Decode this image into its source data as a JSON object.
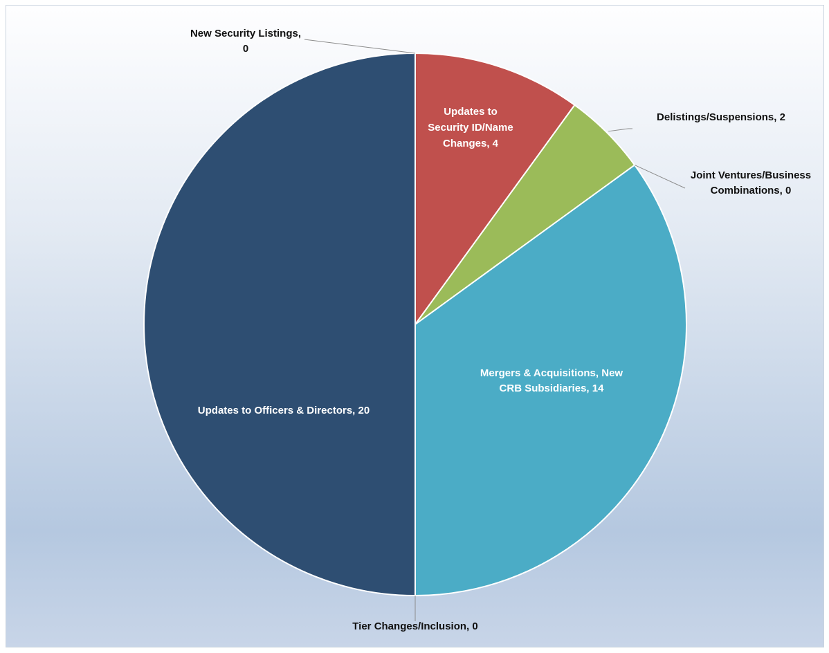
{
  "chart_data": {
    "type": "pie",
    "title": "",
    "slices": [
      {
        "label": "New Security Listings, 0",
        "category": "New Security Listings",
        "value": 0,
        "color": "#4f81bd"
      },
      {
        "label": "Updates to Security ID/Name Changes, 4",
        "category": "Updates to Security ID/Name Changes",
        "value": 4,
        "color": "#c0504d"
      },
      {
        "label": "Delistings/Suspensions, 2",
        "category": "Delistings/Suspensions",
        "value": 2,
        "color": "#9bbb59"
      },
      {
        "label": "Joint Ventures/Business Combinations, 0",
        "category": "Joint Ventures/Business Combinations",
        "value": 0,
        "color": "#8064a2"
      },
      {
        "label": "Mergers & Acquisitions, New CRB Subsidiaries, 14",
        "category": "Mergers & Acquisitions, New CRB Subsidiaries",
        "value": 14,
        "color": "#4bacc6"
      },
      {
        "label": "Tier Changes/Inclusion, 0",
        "category": "Tier Changes/Inclusion",
        "value": 0,
        "color": "#f79646"
      },
      {
        "label": "Updates to Officers & Directors, 20",
        "category": "Updates to Officers & Directors",
        "value": 20,
        "color": "#2e4e72"
      }
    ],
    "label_text": {
      "new_listings": [
        "New Security Listings,",
        "0"
      ],
      "security_id": [
        "Updates to",
        "Security ID/Name",
        "Changes, 4"
      ],
      "delistings": [
        "Delistings/Suspensions, 2"
      ],
      "joint_ventures": [
        "Joint Ventures/Business",
        "Combinations, 0"
      ],
      "mergers": [
        "Mergers & Acquisitions, New",
        "CRB Subsidiaries, 14"
      ],
      "tier_changes": [
        "Tier Changes/Inclusion, 0"
      ],
      "officers": [
        "Updates to Officers & Directors, 20"
      ]
    },
    "legend": "none"
  }
}
